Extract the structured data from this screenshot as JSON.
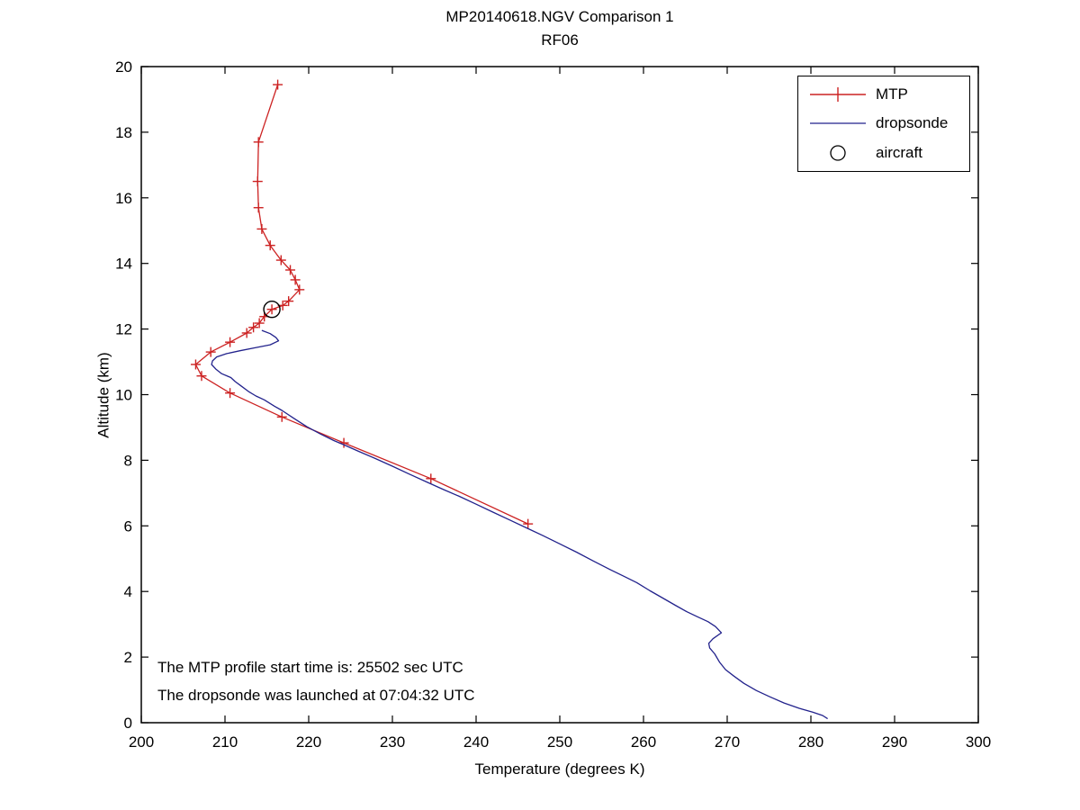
{
  "figure": {
    "background": "#ffffff"
  },
  "annotations": [
    "The MTP profile start time is: 25502 sec UTC",
    "The dropsonde was launched at 07:04:32 UTC"
  ],
  "colors": {
    "axis": "#000000",
    "text": "#000000",
    "mtp": "#cc2222",
    "dropsonde": "#22228c",
    "aircraft": "#000000"
  },
  "chart_data": {
    "type": "line",
    "title": "MP20140618.NGV Comparison 1",
    "subtitle": "RF06",
    "xlabel": "Temperature (degrees K)",
    "ylabel": "Altitude (km)",
    "xlim": [
      200,
      300
    ],
    "ylim": [
      0,
      20
    ],
    "xticks": [
      200,
      210,
      220,
      230,
      240,
      250,
      260,
      270,
      280,
      290,
      300
    ],
    "yticks": [
      0,
      2,
      4,
      6,
      8,
      10,
      12,
      14,
      16,
      18,
      20
    ],
    "grid": false,
    "legend_position": "top-right",
    "series": [
      {
        "name": "MTP",
        "style": "line+marker",
        "marker": "plus",
        "color": "#cc2222",
        "points": [
          [
            216.3,
            19.45
          ],
          [
            214.0,
            17.7
          ],
          [
            213.9,
            16.5
          ],
          [
            214.0,
            15.7
          ],
          [
            214.4,
            15.05
          ],
          [
            215.4,
            14.55
          ],
          [
            216.7,
            14.1
          ],
          [
            217.8,
            13.8
          ],
          [
            218.4,
            13.5
          ],
          [
            218.9,
            13.2
          ],
          [
            217.6,
            12.85
          ],
          [
            216.9,
            12.72
          ],
          [
            215.6,
            12.6
          ],
          [
            214.7,
            12.38
          ],
          [
            214.1,
            12.18
          ],
          [
            213.4,
            12.05
          ],
          [
            212.6,
            11.88
          ],
          [
            210.6,
            11.6
          ],
          [
            208.3,
            11.3
          ],
          [
            206.5,
            10.92
          ],
          [
            207.2,
            10.57
          ],
          [
            210.6,
            10.05
          ],
          [
            216.8,
            9.32
          ],
          [
            224.2,
            8.53
          ],
          [
            234.6,
            7.44
          ],
          [
            246.2,
            6.06
          ]
        ]
      },
      {
        "name": "dropsonde",
        "style": "line",
        "marker": "none",
        "color": "#22228c",
        "points": [
          [
            214.4,
            11.96
          ],
          [
            215.4,
            11.86
          ],
          [
            216.1,
            11.74
          ],
          [
            216.4,
            11.64
          ],
          [
            215.4,
            11.52
          ],
          [
            213.6,
            11.43
          ],
          [
            211.8,
            11.34
          ],
          [
            210.2,
            11.25
          ],
          [
            209.0,
            11.15
          ],
          [
            208.5,
            11.03
          ],
          [
            208.4,
            10.92
          ],
          [
            208.9,
            10.78
          ],
          [
            209.6,
            10.64
          ],
          [
            210.7,
            10.52
          ],
          [
            211.2,
            10.4
          ],
          [
            211.9,
            10.27
          ],
          [
            212.8,
            10.1
          ],
          [
            213.7,
            9.96
          ],
          [
            214.7,
            9.84
          ],
          [
            215.9,
            9.65
          ],
          [
            216.8,
            9.52
          ],
          [
            218.2,
            9.28
          ],
          [
            219.8,
            9.02
          ],
          [
            221.4,
            8.8
          ],
          [
            223.0,
            8.6
          ],
          [
            224.3,
            8.46
          ],
          [
            226.0,
            8.27
          ],
          [
            228.0,
            8.05
          ],
          [
            230.0,
            7.82
          ],
          [
            232.0,
            7.58
          ],
          [
            234.0,
            7.35
          ],
          [
            236.0,
            7.12
          ],
          [
            238.0,
            6.9
          ],
          [
            240.0,
            6.66
          ],
          [
            242.0,
            6.42
          ],
          [
            244.0,
            6.18
          ],
          [
            246.1,
            5.93
          ],
          [
            248.0,
            5.7
          ],
          [
            250.0,
            5.45
          ],
          [
            252.0,
            5.2
          ],
          [
            254.0,
            4.93
          ],
          [
            256.0,
            4.67
          ],
          [
            257.6,
            4.47
          ],
          [
            259.2,
            4.27
          ],
          [
            260.8,
            4.02
          ],
          [
            262.3,
            3.8
          ],
          [
            263.8,
            3.58
          ],
          [
            265.2,
            3.38
          ],
          [
            266.5,
            3.22
          ],
          [
            267.7,
            3.08
          ],
          [
            268.6,
            2.93
          ],
          [
            269.3,
            2.74
          ],
          [
            268.3,
            2.56
          ],
          [
            267.8,
            2.42
          ],
          [
            267.9,
            2.28
          ],
          [
            268.5,
            2.1
          ],
          [
            269.1,
            1.84
          ],
          [
            269.8,
            1.62
          ],
          [
            270.8,
            1.42
          ],
          [
            272.0,
            1.2
          ],
          [
            273.5,
            0.98
          ],
          [
            275.0,
            0.8
          ],
          [
            276.8,
            0.6
          ],
          [
            278.6,
            0.44
          ],
          [
            280.2,
            0.32
          ],
          [
            281.4,
            0.22
          ],
          [
            282.0,
            0.12
          ]
        ]
      },
      {
        "name": "aircraft",
        "style": "marker",
        "marker": "circle",
        "color": "#000000",
        "points": [
          [
            215.6,
            12.6
          ]
        ]
      }
    ]
  }
}
